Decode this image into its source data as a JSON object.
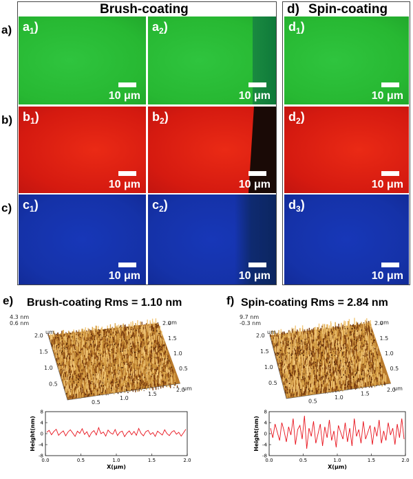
{
  "headers": {
    "brush": "Brush-coating",
    "spin": "Spin-coating",
    "spin_letter": "d)"
  },
  "row_labels": [
    "a)",
    "b)",
    "c)"
  ],
  "panels": [
    {
      "id": "a1",
      "letter": "a",
      "sub": "1",
      "color": "green"
    },
    {
      "id": "a2",
      "letter": "a",
      "sub": "2",
      "color": "green"
    },
    {
      "id": "d1",
      "letter": "d",
      "sub": "1",
      "color": "green"
    },
    {
      "id": "b1",
      "letter": "b",
      "sub": "1",
      "color": "red"
    },
    {
      "id": "b2",
      "letter": "b",
      "sub": "2",
      "color": "red"
    },
    {
      "id": "d2",
      "letter": "d",
      "sub": "2",
      "color": "red"
    },
    {
      "id": "c1",
      "letter": "c",
      "sub": "1",
      "color": "blue"
    },
    {
      "id": "c2",
      "letter": "c",
      "sub": "2",
      "color": "blue"
    },
    {
      "id": "d3",
      "letter": "d",
      "sub": "3",
      "color": "blue"
    }
  ],
  "scalebar_label": "10 μm",
  "afm": {
    "e": {
      "letter": "e)",
      "title": "Brush-coating Rms = 1.10 nm",
      "z_top": "4.3 nm",
      "z_bottom": "0.6 nm",
      "profile": [
        0.5,
        1.2,
        -0.4,
        0.8,
        1.6,
        -0.6,
        0.3,
        1.0,
        -0.8,
        0.6,
        1.4,
        0.2,
        -1.0,
        0.9,
        0.1,
        1.8,
        -0.3,
        0.7,
        -1.2,
        0.4,
        1.1,
        -0.5,
        2.2,
        0.0,
        0.6,
        -0.9,
        1.3,
        0.3,
        -0.2,
        1.5,
        -0.7,
        0.5,
        0.9,
        -1.1,
        0.2,
        1.0,
        -0.4,
        0.8,
        -0.6,
        1.9,
        0.1,
        -0.8,
        0.7,
        1.2,
        -0.3,
        0.4,
        -1.0,
        0.9,
        0.2,
        -0.5,
        1.4,
        0.0,
        -0.7,
        0.6,
        1.1,
        -0.2,
        0.5,
        -0.9,
        0.3,
        1.6
      ]
    },
    "f": {
      "letter": "f)",
      "title": "Spin-coating Rms = 2.84 nm",
      "z_top": "9.7 nm",
      "z_bottom": "-0.3 nm",
      "profile": [
        2.0,
        -1.5,
        3.5,
        0.5,
        -2.5,
        4.0,
        1.0,
        -3.0,
        2.5,
        -0.5,
        5.5,
        -4.0,
        1.5,
        3.0,
        -2.0,
        6.5,
        -5.5,
        2.0,
        -1.0,
        4.5,
        -3.5,
        0.0,
        3.5,
        -4.5,
        2.5,
        -1.5,
        5.0,
        -2.5,
        1.0,
        -5.0,
        3.0,
        0.5,
        -2.0,
        4.0,
        -3.0,
        2.0,
        -4.5,
        5.5,
        -1.0,
        1.5,
        -3.5,
        4.5,
        -2.0,
        0.5,
        3.0,
        -4.0,
        2.5,
        -1.0,
        5.0,
        -3.5,
        1.0,
        -2.5,
        4.0,
        -0.5,
        2.0,
        -4.0,
        3.5,
        -1.5,
        5.5,
        -2.0
      ]
    },
    "xlabel": "X(μm)",
    "ylabel": "Height(nm)",
    "xticks": [
      "0.0",
      "0.5",
      "1.0",
      "1.5",
      "2.0"
    ],
    "yticks": [
      "8",
      "4",
      "0",
      "-4",
      "-8"
    ],
    "surf_ticks": [
      "0.5",
      "1.0",
      "1.5",
      "2.0"
    ],
    "surf_unit": "um"
  },
  "colors": {
    "green": "#27b832",
    "red": "#d51a10",
    "blue": "#1532a8",
    "trace": "#e8101a",
    "afm_light": "#d9a44a",
    "afm_dark": "#5a2a08"
  }
}
